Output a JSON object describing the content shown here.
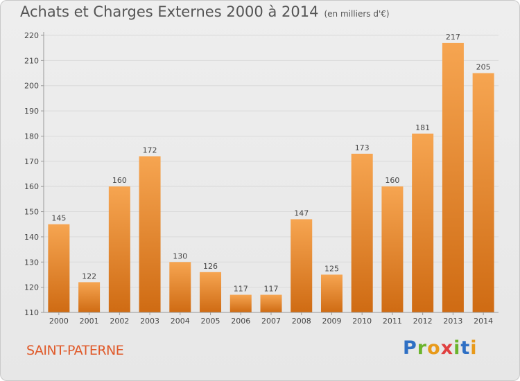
{
  "header": {
    "title": "Achats et Charges Externes 2000 à 2014",
    "subtitle": "(en milliers d'€)"
  },
  "commune": "SAINT-PATERNE",
  "logo": {
    "letters": [
      "P",
      "r",
      "o",
      "x",
      "i",
      "t",
      "i"
    ],
    "colors": [
      "#2e6fc4",
      "#6bb42c",
      "#e89a1a",
      "#e04040",
      "#6bb42c",
      "#2e6fc4",
      "#e89a1a"
    ]
  },
  "colors": {
    "bar_top": "#f6a551",
    "bar_bottom": "#cf6b13",
    "axis": "#999999",
    "grid": "#dadada",
    "text": "#444444"
  },
  "chart_data": {
    "type": "bar",
    "categories": [
      "2000",
      "2001",
      "2002",
      "2003",
      "2004",
      "2005",
      "2006",
      "2007",
      "2008",
      "2009",
      "2010",
      "2011",
      "2012",
      "2013",
      "2014"
    ],
    "values": [
      145,
      122,
      160,
      172,
      130,
      126,
      117,
      117,
      147,
      125,
      173,
      160,
      181,
      217,
      205
    ],
    "ylim": [
      110,
      220
    ],
    "yticks": [
      110,
      120,
      130,
      140,
      150,
      160,
      170,
      180,
      190,
      200,
      210,
      220
    ],
    "grid": true,
    "legend": "none"
  }
}
